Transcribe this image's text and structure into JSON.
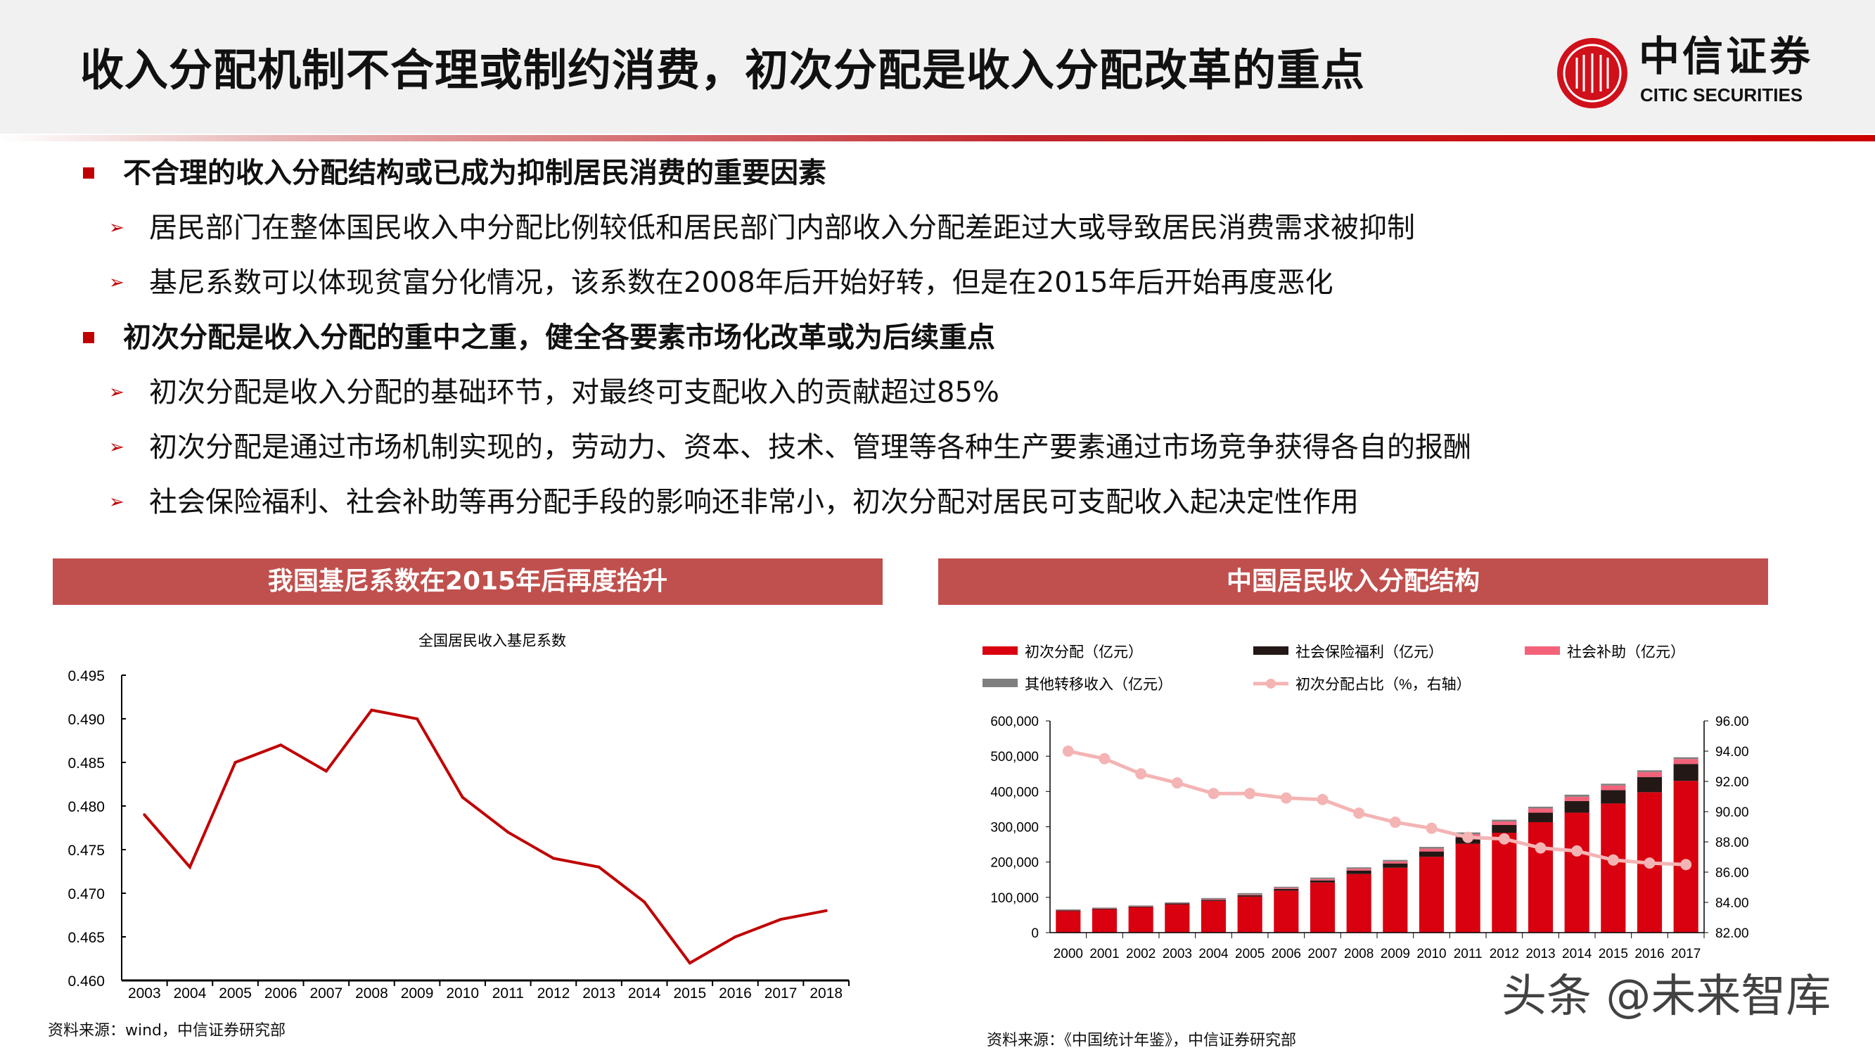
{
  "header": {
    "title": "收入分配机制不合理或制约消费，初次分配是收入分配改革的重点",
    "logo_cn": "中信证券",
    "logo_en": "CITIC SECURITIES"
  },
  "bullets": [
    {
      "text": "不合理的收入分配结构或已成为抑制居民消费的重要因素",
      "subs": [
        "居民部门在整体国民收入中分配比例较低和居民部门内部收入分配差距过大或导致居民消费需求被抑制",
        "基尼系数可以体现贫富分化情况，该系数在2008年后开始好转，但是在2015年后开始再度恶化"
      ]
    },
    {
      "text": "初次分配是收入分配的重中之重，健全各要素市场化改革或为后续重点",
      "subs": [
        "初次分配是收入分配的基础环节，对最终可支配收入的贡献超过85%",
        "初次分配是通过市场机制实现的，劳动力、资本、技术、管理等各种生产要素通过市场竞争获得各自的报酬",
        "社会保险福利、社会补助等再分配手段的影响还非常小，初次分配对居民可支配收入起决定性作用"
      ]
    }
  ],
  "left_panel": {
    "header": "我国基尼系数在2015年后再度抬升",
    "source": "资料来源：wind，中信证券研究部"
  },
  "right_panel": {
    "header": "中国居民收入分配结构",
    "source": "资料来源：《中国统计年鉴》，中信证券研究部"
  },
  "watermark": "头条 @未来智库",
  "chart_data": [
    {
      "type": "line",
      "title": "全国居民收入基尼系数",
      "categories": [
        "2003",
        "2004",
        "2005",
        "2006",
        "2007",
        "2008",
        "2009",
        "2010",
        "2011",
        "2012",
        "2013",
        "2014",
        "2015",
        "2016",
        "2017",
        "2018"
      ],
      "values": [
        0.479,
        0.473,
        0.485,
        0.487,
        0.484,
        0.491,
        0.49,
        0.481,
        0.477,
        0.474,
        0.473,
        0.469,
        0.462,
        0.465,
        0.467,
        0.468
      ],
      "ylim": [
        0.46,
        0.495
      ],
      "yticks": [
        "0.460",
        "0.465",
        "0.470",
        "0.475",
        "0.480",
        "0.485",
        "0.490",
        "0.495"
      ],
      "color": "#c00000",
      "grid": false
    },
    {
      "type": "bar",
      "stacked": true,
      "categories": [
        "2000",
        "2001",
        "2002",
        "2003",
        "2004",
        "2005",
        "2006",
        "2007",
        "2008",
        "2009",
        "2010",
        "2011",
        "2012",
        "2013",
        "2014",
        "2015",
        "2016",
        "2017"
      ],
      "series": [
        {
          "name": "初次分配（亿元）",
          "color": "#d9000f",
          "values": [
            61000,
            66000,
            72000,
            80000,
            90000,
            102000,
            119000,
            142000,
            166000,
            184000,
            215000,
            252000,
            283000,
            313000,
            340000,
            366000,
            398000,
            430000
          ]
        },
        {
          "name": "社会保险福利（亿元）",
          "color": "#231815",
          "values": [
            2000,
            2000,
            2000,
            3000,
            3000,
            4000,
            5000,
            6000,
            10000,
            12000,
            15000,
            18000,
            22000,
            27000,
            33000,
            38000,
            43000,
            48000
          ]
        },
        {
          "name": "社会补助（亿元）",
          "color": "#f4627a",
          "values": [
            1000,
            1000,
            1000,
            1000,
            2000,
            2000,
            3000,
            4000,
            5000,
            6000,
            8000,
            9000,
            10000,
            12000,
            12000,
            13000,
            14000,
            14000
          ]
        },
        {
          "name": "其他转移收入（亿元）",
          "color": "#7f7f7f",
          "values": [
            2000,
            2000,
            2000,
            2000,
            3000,
            4000,
            3000,
            4000,
            4000,
            4000,
            5000,
            5000,
            5000,
            5000,
            6000,
            5000,
            5000,
            5000
          ]
        }
      ],
      "line_series": {
        "name": "初次分配占比（%，右轴）",
        "color": "#f4b4b4",
        "values": [
          94.0,
          93.5,
          92.5,
          91.9,
          91.2,
          91.2,
          90.9,
          90.8,
          89.9,
          89.3,
          88.9,
          88.3,
          88.2,
          87.6,
          87.4,
          86.8,
          86.6,
          86.5
        ]
      },
      "ylim": [
        0,
        600000
      ],
      "yticks": [
        "0",
        "100,000",
        "200,000",
        "300,000",
        "400,000",
        "500,000",
        "600,000"
      ],
      "y2lim": [
        82,
        96
      ],
      "y2ticks": [
        "82.00",
        "84.00",
        "86.00",
        "88.00",
        "90.00",
        "92.00",
        "94.00",
        "96.00"
      ],
      "legend": "top",
      "grid": false
    }
  ]
}
